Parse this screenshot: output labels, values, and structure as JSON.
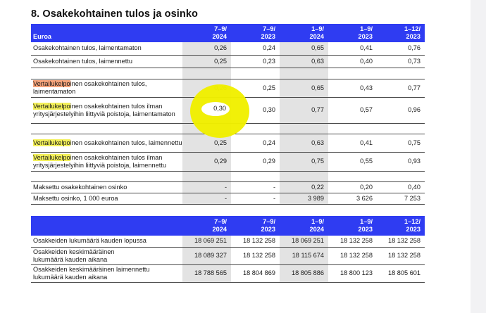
{
  "section_title": "8. Osakekohtainen tulos ja osinko",
  "table1": {
    "header": {
      "label": "Euroa",
      "columns": [
        [
          "7–9/",
          "2024"
        ],
        [
          "7–9/",
          "2023"
        ],
        [
          "1–9/",
          "2024"
        ],
        [
          "1–9/",
          "2023"
        ],
        [
          "1–12/",
          "2023"
        ]
      ]
    },
    "rows": [
      {
        "label": "Osakekohtainen tulos, laimentamaton",
        "values": [
          "0,26",
          "0,24",
          "0,65",
          "0,41",
          "0,76"
        ]
      },
      {
        "label": "Osakekohtainen tulos, laimennettu",
        "values": [
          "0,25",
          "0,23",
          "0,63",
          "0,40",
          "0,73"
        ]
      },
      {
        "label_hl": "Vertailukelpo",
        "label_rest": "inen osakekohtainen tulos, laimentamaton",
        "values": [
          "0,26",
          "0,25",
          "0,65",
          "0,43",
          "0,77"
        ]
      },
      {
        "label_hl": "Vertailukelpo",
        "label_rest": "inen osakekohtainen tulos ilman yritysjärjestelyihin liittyviä poistoja, laimentamaton",
        "values": [
          "0,30",
          "0,30",
          "0,77",
          "0,57",
          "0,96"
        ]
      },
      {
        "label_hl": "Vertailukelpo",
        "label_rest": "inen osakekohtainen tulos, laimennettu",
        "values": [
          "0,25",
          "0,24",
          "0,63",
          "0,41",
          "0,75"
        ]
      },
      {
        "label_hl": "Vertailukelpo",
        "label_rest": "inen osakekohtainen tulos ilman yritysjärjestelyihin liittyviä poistoja, laimennettu",
        "values": [
          "0,29",
          "0,29",
          "0,75",
          "0,55",
          "0,93"
        ]
      },
      {
        "label": "Maksettu osakekohtainen osinko",
        "values": [
          "-",
          "-",
          "0,22",
          "0,20",
          "0,40"
        ]
      },
      {
        "label": "Maksettu osinko,  1 000 euroa",
        "values": [
          "-",
          "-",
          "3 989",
          "3 626",
          "7 253"
        ]
      }
    ]
  },
  "table2": {
    "header": {
      "columns": [
        [
          "7–9/",
          "2024"
        ],
        [
          "7–9/",
          "2023"
        ],
        [
          "1–9/",
          "2024"
        ],
        [
          "1–9/",
          "2023"
        ],
        [
          "1–12/",
          "2023"
        ]
      ]
    },
    "rows": [
      {
        "label": "Osakkeiden lukumäärä kauden lopussa",
        "values": [
          "18 069 251",
          "18 132 258",
          "18 069 251",
          "18 132 258",
          "18 132 258"
        ]
      },
      {
        "label": "Osakkeiden keskimääräinen lukumäärä kauden aikana",
        "values": [
          "18 089 327",
          "18 132 258",
          "18 115 674",
          "18 132 258",
          "18 132 258"
        ]
      },
      {
        "label": "Osakkeiden keskimääräinen laimennettu lukumäärä kauden aikana",
        "values": [
          "18 788 565",
          "18 804 869",
          "18 805 886",
          "18 800 123",
          "18 805 601"
        ]
      }
    ]
  },
  "colors": {
    "header_bg": "#2f3cf2",
    "shade": "#e3e3e3",
    "highlight_yellow": "#f3f05a",
    "highlight_orange": "#f5a37a",
    "annotation_circle": "#f1ef00"
  }
}
